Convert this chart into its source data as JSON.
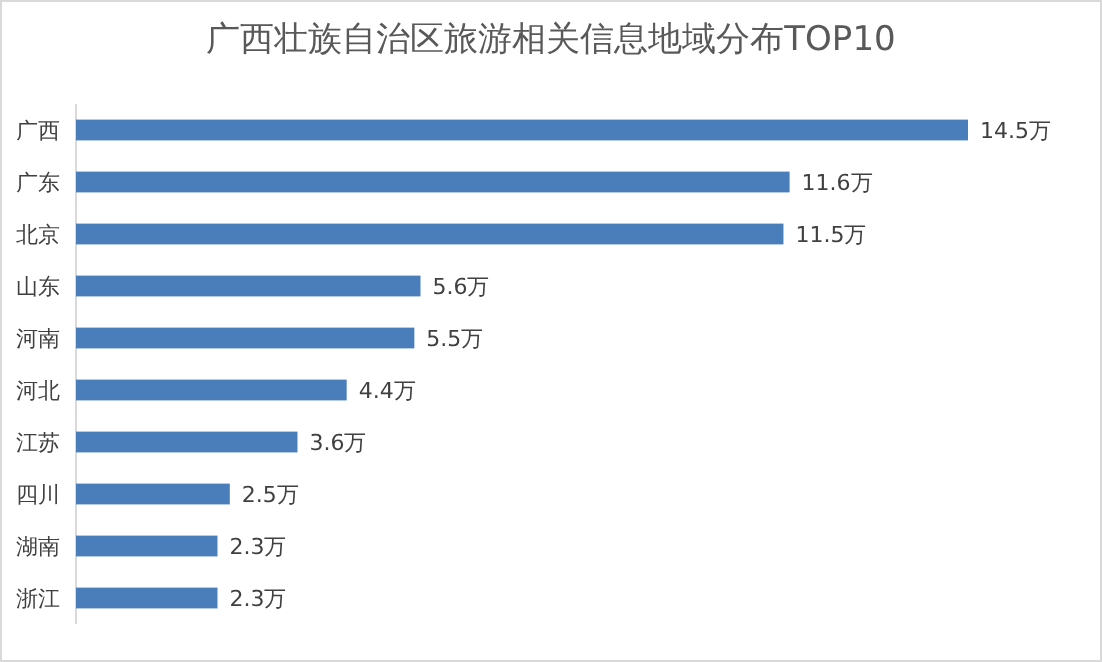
{
  "chart_data": {
    "type": "bar",
    "orientation": "horizontal",
    "title": "广西壮族自治区旅游相关信息地域分布TOP10",
    "categories": [
      "广西",
      "广东",
      "北京",
      "山东",
      "河南",
      "河北",
      "江苏",
      "四川",
      "湖南",
      "浙江"
    ],
    "values": [
      14.5,
      11.6,
      11.5,
      5.6,
      5.5,
      4.4,
      3.6,
      2.5,
      2.3,
      2.3
    ],
    "value_labels": [
      "14.5万",
      "11.6万",
      "11.5万",
      "5.6万",
      "5.5万",
      "4.4万",
      "3.6万",
      "2.5万",
      "2.3万",
      "2.3万"
    ],
    "color": "#4a7ebb"
  }
}
